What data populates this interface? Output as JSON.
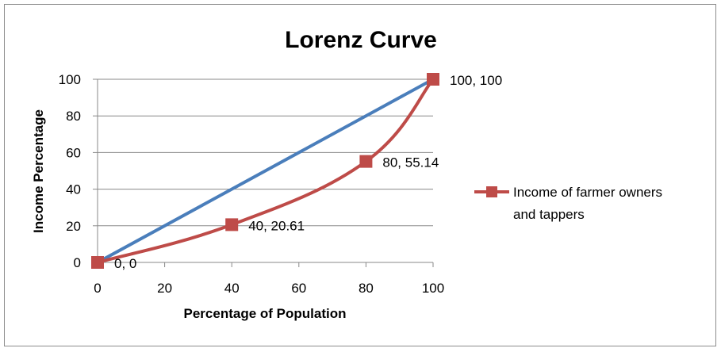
{
  "chart_data": {
    "type": "line",
    "title": "Lorenz Curve",
    "xlabel": "Percentage of Population",
    "ylabel": "Income Percentage",
    "xlim": [
      0,
      100
    ],
    "ylim": [
      0,
      100
    ],
    "x_ticks": [
      0,
      20,
      40,
      60,
      80,
      100
    ],
    "y_ticks": [
      0,
      20,
      40,
      60,
      80,
      100
    ],
    "grid": "horizontal",
    "legend_position": "right",
    "series": [
      {
        "name": "",
        "color": "#4a7ebb",
        "markers": false,
        "x": [
          0,
          100
        ],
        "y": [
          0,
          100
        ]
      },
      {
        "name": "Income of farmer owners and tappers",
        "legend_lines": [
          "Income of farmer owners",
          "and tappers"
        ],
        "color": "#be4b48",
        "markers": true,
        "smooth": true,
        "x": [
          0,
          40,
          80,
          100
        ],
        "y": [
          0,
          20.61,
          55.14,
          100
        ],
        "data_labels": [
          "0, 0",
          "40, 20.61",
          "80, 55.14",
          "100, 100"
        ]
      }
    ]
  }
}
